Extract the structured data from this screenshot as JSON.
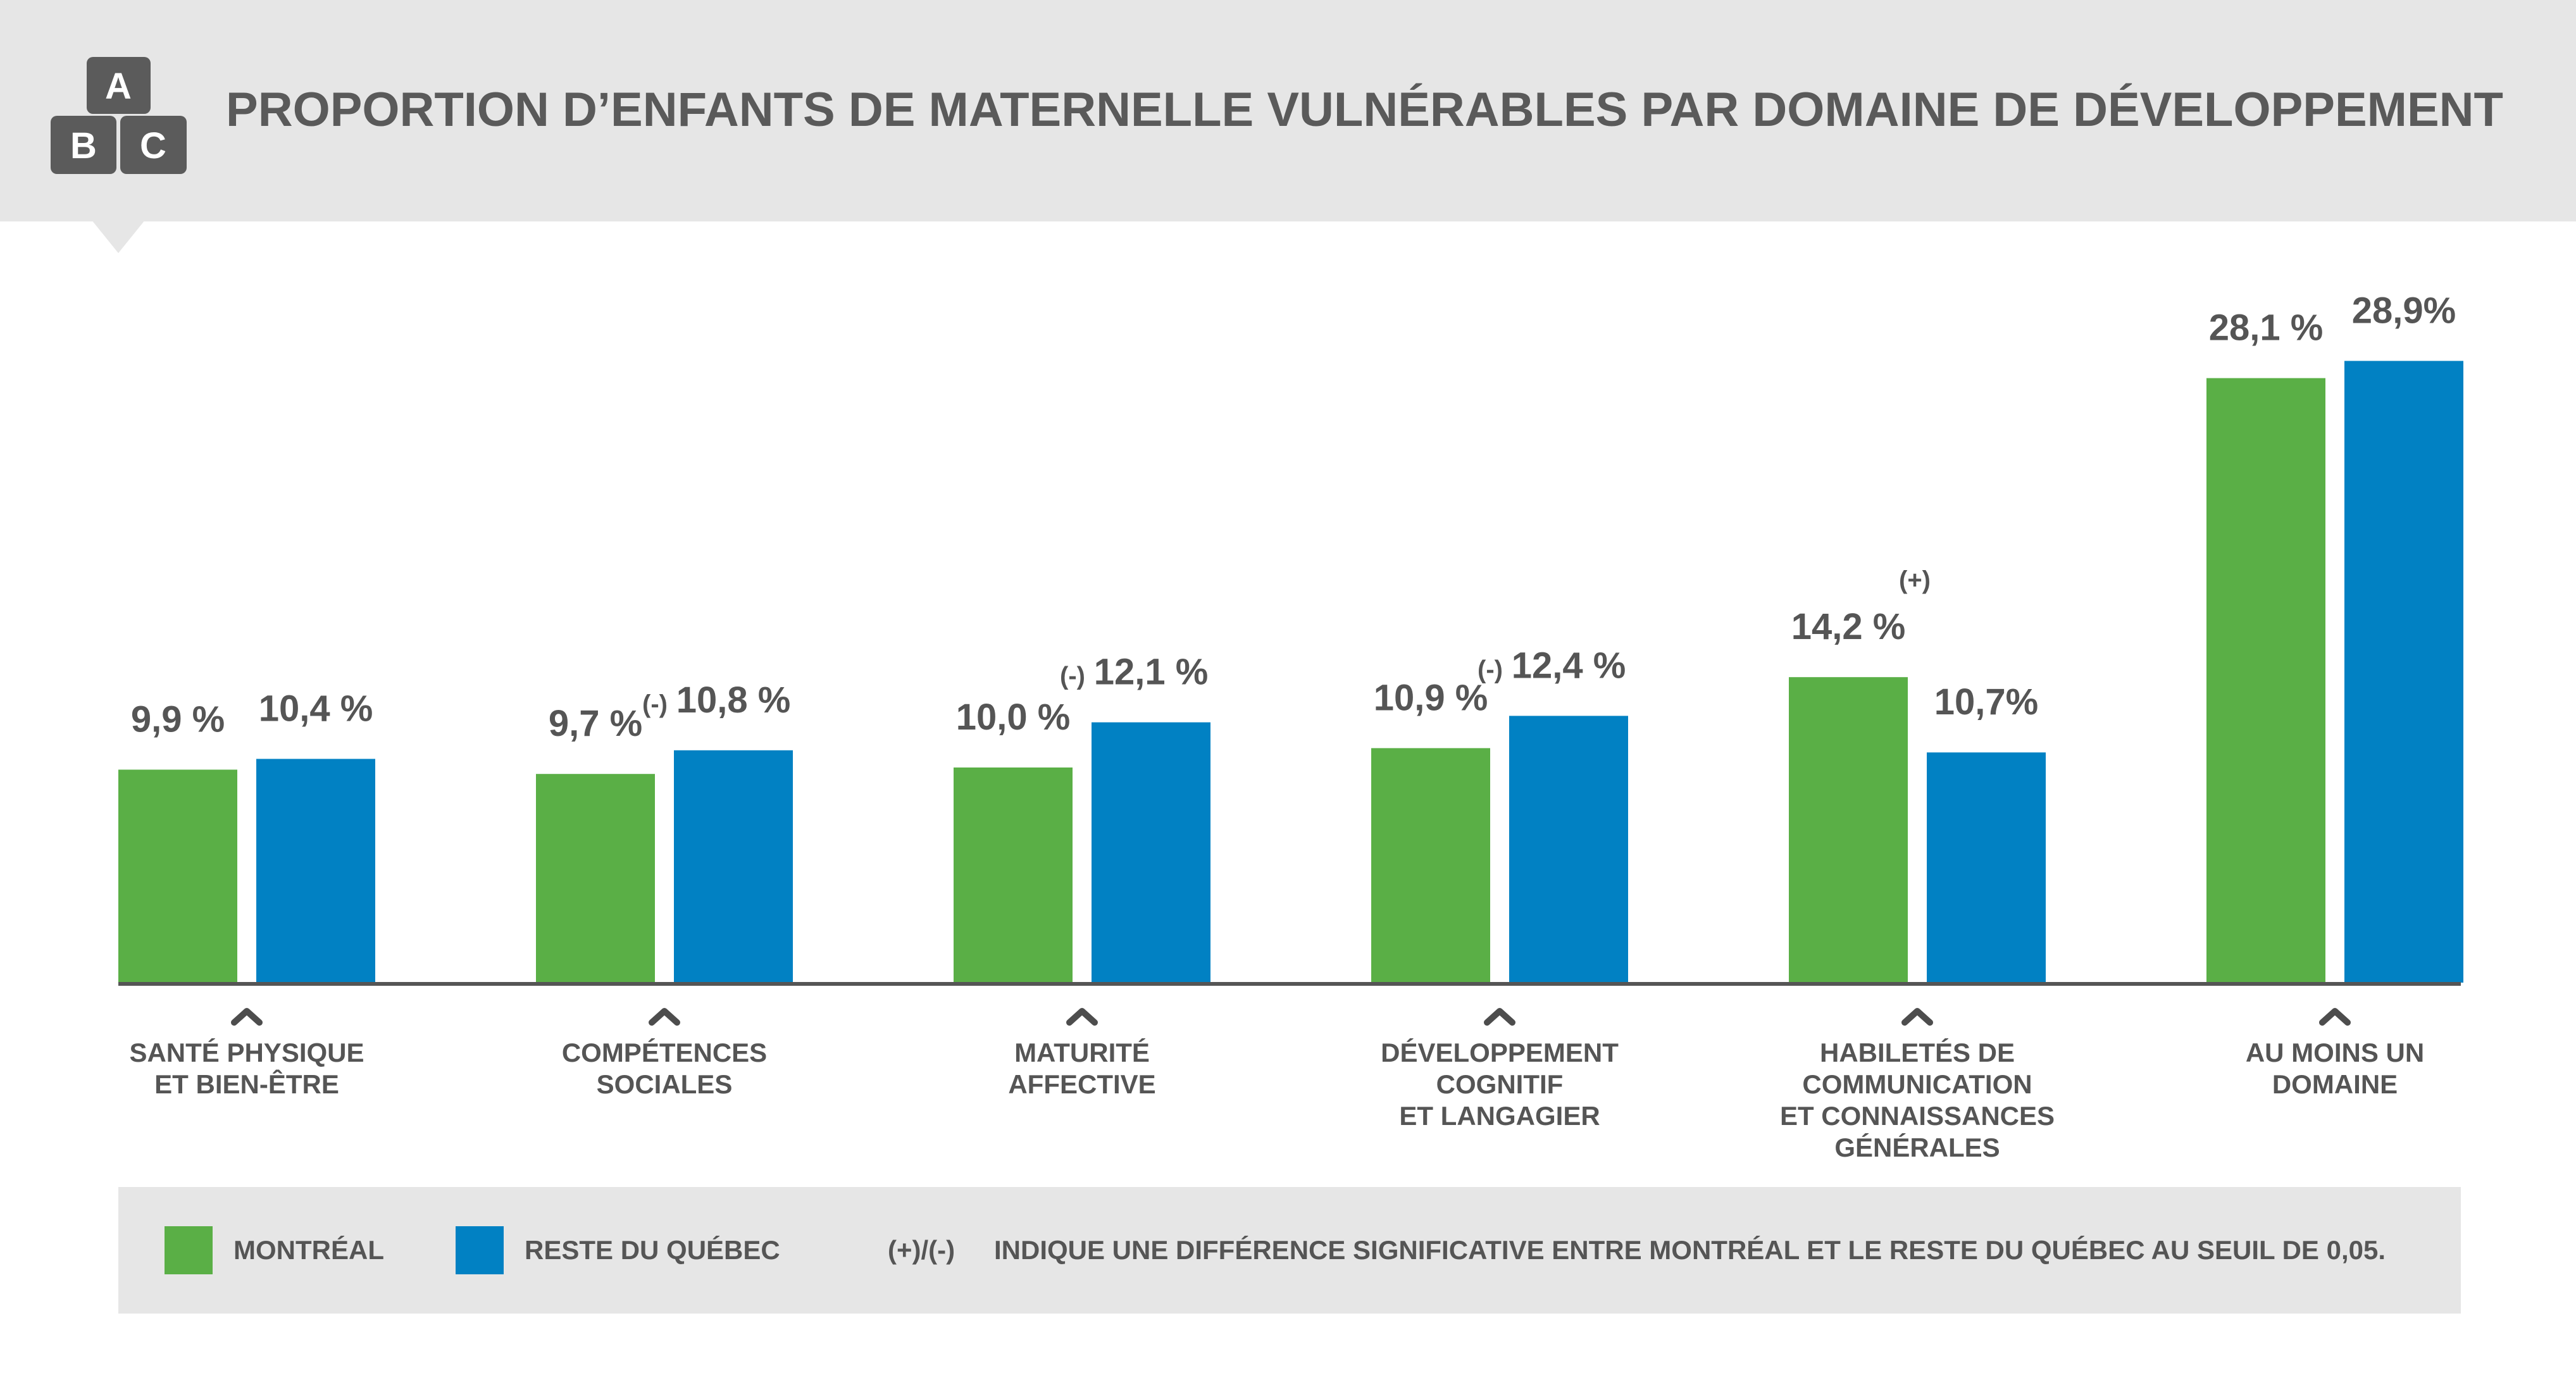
{
  "header": {
    "title": "PROPORTION D’ENFANTS DE MATERNELLE VULNÉRABLES PAR DOMAINE DE DÉVELOPPEMENT",
    "logo_letters": [
      "A",
      "B",
      "C"
    ]
  },
  "colors": {
    "montreal": "#5aaf46",
    "reste": "#0181c3",
    "text": "#555555",
    "header_bg": "#e6e6e6"
  },
  "legend": {
    "montreal_label": "MONTRÉAL",
    "reste_label": "RESTE DU QUÉBEC",
    "note_symbols": "(+)/(-)",
    "note_text": "INDIQUE UNE DIFFÉRENCE SIGNIFICATIVE ENTRE MONTRÉAL ET LE RESTE DU QUÉBEC AU SEUIL DE 0,05."
  },
  "chart_data": {
    "type": "bar",
    "title": "PROPORTION D’ENFANTS DE MATERNELLE VULNÉRABLES PAR DOMAINE DE DÉVELOPPEMENT",
    "categories": [
      [
        "SANTÉ PHYSIQUE",
        "ET BIEN-ÊTRE"
      ],
      [
        "COMPÉTENCES",
        "SOCIALES"
      ],
      [
        "MATURITÉ",
        "AFFECTIVE"
      ],
      [
        "DÉVELOPPEMENT",
        "COGNITIF",
        "ET LANGAGIER"
      ],
      [
        "HABILETÉS DE",
        "COMMUNICATION",
        "ET CONNAISSANCES",
        "GÉNÉRALES"
      ],
      [
        "AU MOINS UN",
        "DOMAINE"
      ]
    ],
    "series": [
      {
        "name": "MONTRÉAL",
        "values": [
          9.9,
          9.7,
          10.0,
          10.9,
          14.2,
          28.1
        ],
        "labels": [
          "9,9 %",
          "9,7 %",
          "10,0 %",
          "10,9 %",
          "14,2 %",
          "28,1 %"
        ],
        "significance": [
          "",
          "",
          "",
          "",
          "(+)",
          ""
        ]
      },
      {
        "name": "RESTE DU QUÉBEC",
        "values": [
          10.4,
          10.8,
          12.1,
          12.4,
          10.7,
          28.9
        ],
        "labels": [
          "10,4 %",
          "10,8 %",
          "12,1 %",
          "12,4 %",
          "10,7%",
          "28,9%"
        ],
        "significance": [
          "",
          "(-)",
          "(-)",
          "(-)",
          "",
          ""
        ]
      }
    ],
    "ylim": [
      0,
      30
    ],
    "grid": false,
    "legend_position": "bottom"
  }
}
